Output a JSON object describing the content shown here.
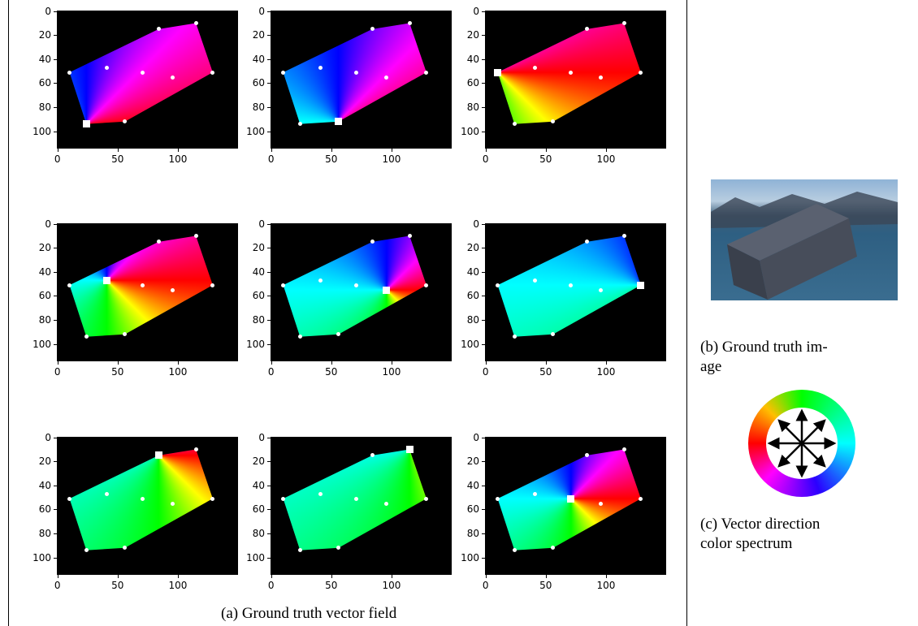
{
  "axes": {
    "xlim": [
      -0.5,
      150
    ],
    "ylim": [
      114.5,
      -0.5
    ],
    "xticks": [
      0,
      50,
      100
    ],
    "yticks": [
      0,
      20,
      40,
      60,
      80,
      100
    ]
  },
  "keypoints": [
    [
      10,
      51
    ],
    [
      41,
      47
    ],
    [
      84,
      15
    ],
    [
      115,
      10
    ],
    [
      71,
      51
    ],
    [
      96,
      55
    ],
    [
      129,
      51
    ],
    [
      56,
      92
    ],
    [
      24,
      94
    ]
  ],
  "panels": [
    {
      "anchor": 8
    },
    {
      "anchor": 7
    },
    {
      "anchor": 0
    },
    {
      "anchor": 1
    },
    {
      "anchor": 5
    },
    {
      "anchor": 6
    },
    {
      "anchor": 2
    },
    {
      "anchor": 3
    },
    {
      "anchor": 4
    }
  ],
  "captions": {
    "a": "(a) Ground truth vector field",
    "b": [
      "(b) Ground truth im-",
      "age"
    ],
    "c": [
      "(c) Vector direction",
      "color spectrum"
    ]
  }
}
